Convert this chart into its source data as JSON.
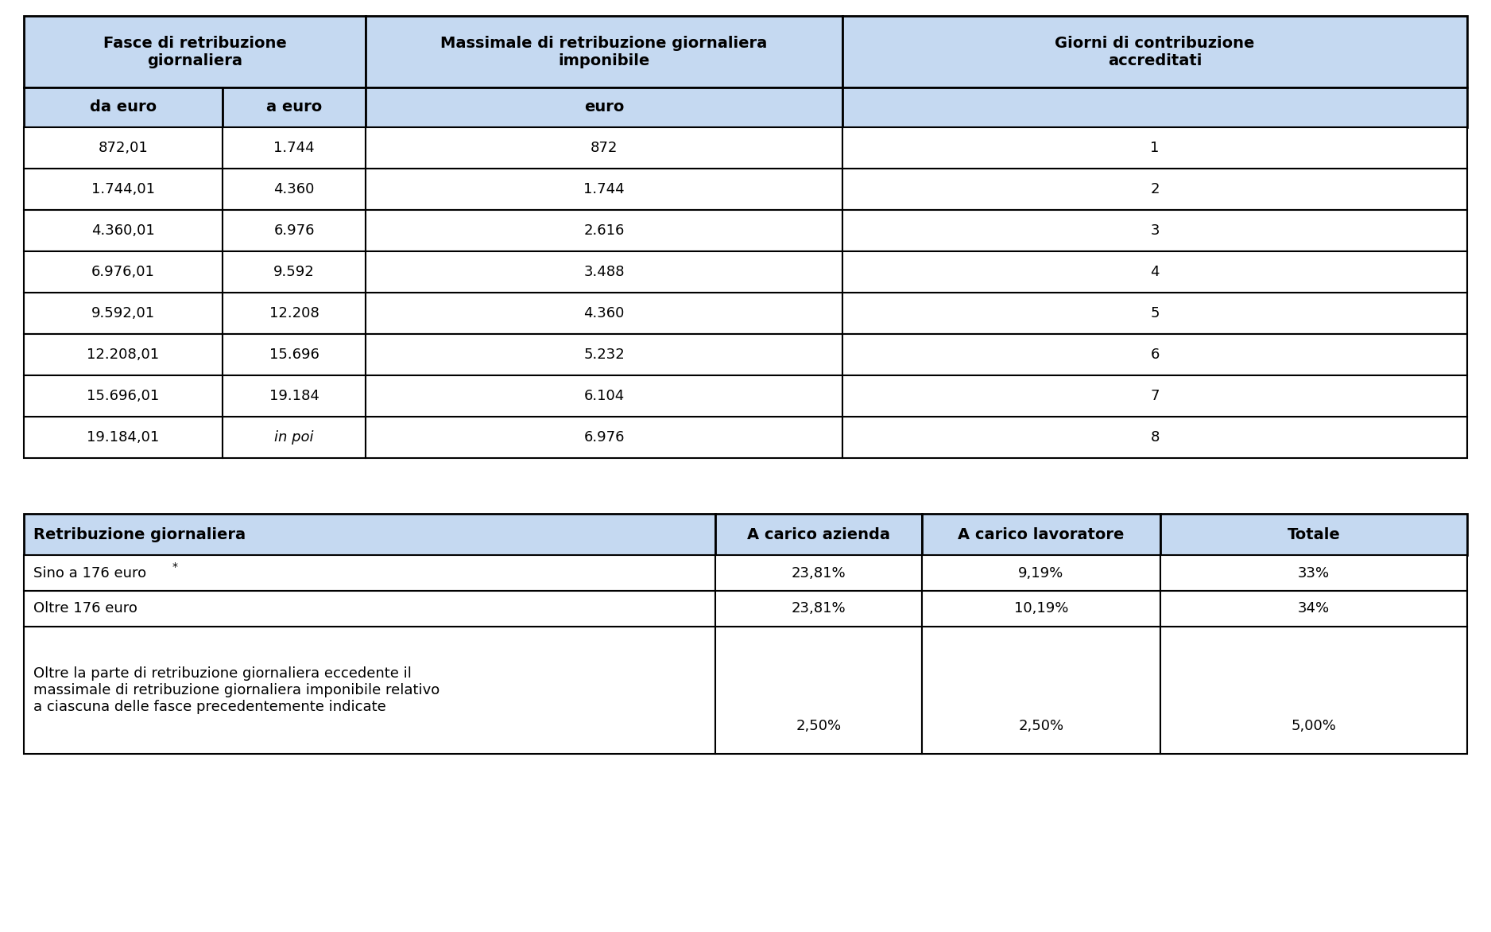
{
  "bg_color": "#ffffff",
  "header_bg": "#c5d9f1",
  "border_color": "#000000",
  "text_color": "#000000",
  "table1": {
    "header1": [
      "Fasce di retribuzione\ngiornaliera",
      "Massimale di retribuzione giornaliera\nimponibile",
      "Giorni di contribuzione\naccreditati"
    ],
    "header2": [
      "da euro",
      "a euro",
      "euro",
      ""
    ],
    "rows": [
      [
        "872,01",
        "1.744",
        "872",
        "1"
      ],
      [
        "1.744,01",
        "4.360",
        "1.744",
        "2"
      ],
      [
        "4.360,01",
        "6.976",
        "2.616",
        "3"
      ],
      [
        "6.976,01",
        "9.592",
        "3.488",
        "4"
      ],
      [
        "9.592,01",
        "12.208",
        "4.360",
        "5"
      ],
      [
        "12.208,01",
        "15.696",
        "5.232",
        "6"
      ],
      [
        "15.696,01",
        "19.184",
        "6.104",
        "7"
      ],
      [
        "19.184,01",
        "in poi",
        "6.976",
        "8"
      ]
    ]
  },
  "table2": {
    "col_headers": [
      "Retribuzione giornaliera",
      "A carico azienda",
      "A carico lavoratore",
      "Totale"
    ],
    "rows": [
      [
        "Sino a 176 euro*",
        "23,81%",
        "9,19%",
        "33%"
      ],
      [
        "Oltre 176 euro",
        "23,81%",
        "10,19%",
        "34%"
      ],
      [
        "Oltre la parte di retribuzione giornaliera eccedente il\nmassimale di retribuzione giornaliera imponibile relativo\na ciascuna delle fasce precedentemente indicate",
        "2,50%",
        "2,50%",
        "5,00%"
      ]
    ]
  }
}
